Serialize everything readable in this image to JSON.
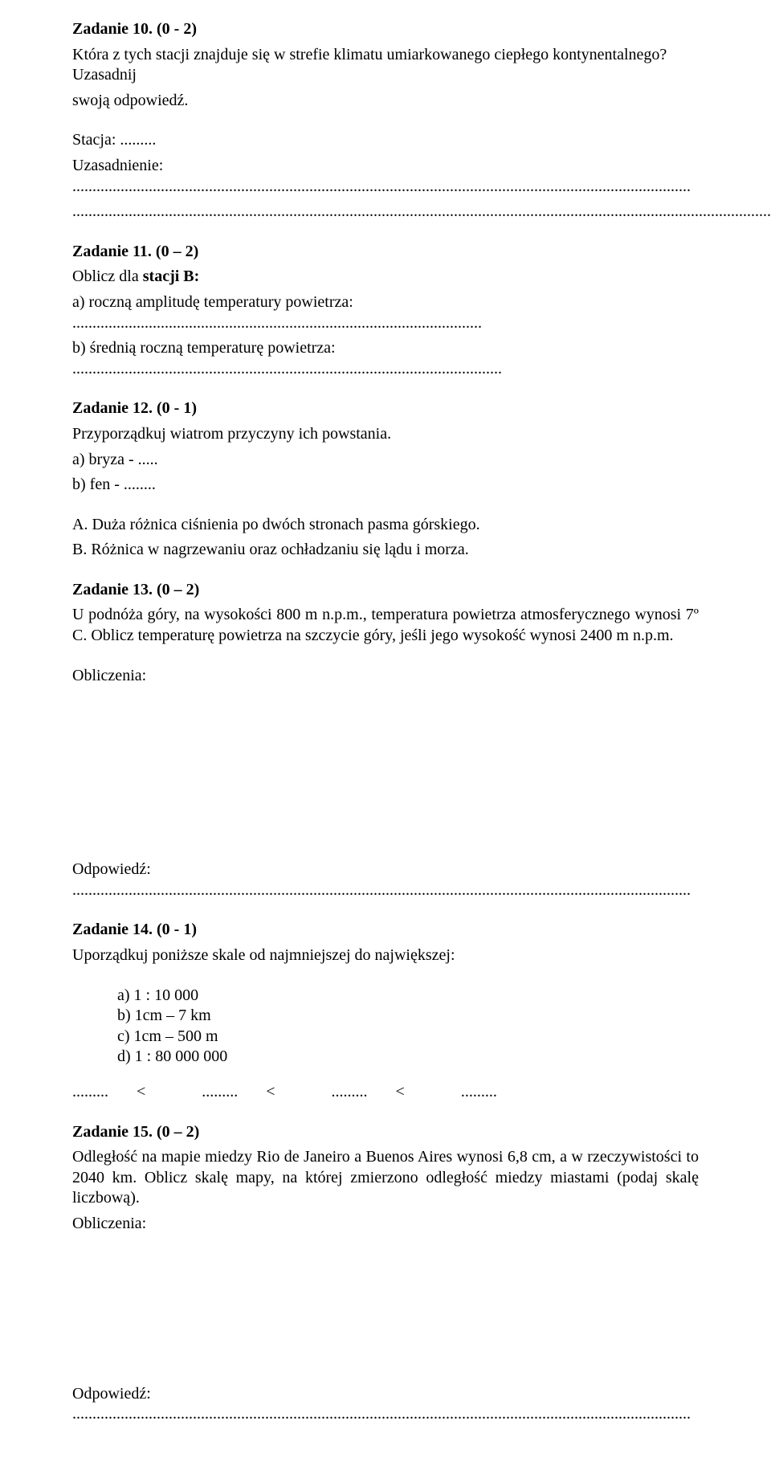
{
  "z10": {
    "heading": "Zadanie 10. (0 - 2)",
    "q_l1": "Która z tych stacji znajduje się w strefie klimatu umiarkowanego ciepłego kontynentalnego? Uzasadnij",
    "q_l2": "swoją odpowiedź.",
    "stacja": "Stacja: .........",
    "uzas": "Uzasadnienie: ..........................................................................................................................................................",
    "dots": "................................................................................................................................................................................"
  },
  "z11": {
    "heading": "Zadanie 11. (0 – 2)",
    "intro_a": "Oblicz dla ",
    "intro_b": "stacji B:",
    "a": "a) roczną amplitudę temperatury powietrza: ......................................................................................................",
    "b": "b) średnią roczną temperaturę powietrza: ..........................................................................................................."
  },
  "z12": {
    "heading": "Zadanie 12. (0 - 1)",
    "q": "Przyporządkuj wiatrom przyczyny ich powstania.",
    "a": "a) bryza - .....",
    "b": "b) fen - ........",
    "optA": "A. Duża różnica ciśnienia po dwóch stronach pasma górskiego.",
    "optB": "B. Różnica w nagrzewaniu oraz ochładzaniu się lądu i morza."
  },
  "z13": {
    "heading": "Zadanie 13. (0 – 2)",
    "p": "U podnóża góry, na wysokości 800 m n.p.m., temperatura powietrza atmosferycznego wynosi 7º C. Oblicz temperaturę powietrza na szczycie góry, jeśli jego wysokość wynosi 2400 m n.p.m.",
    "calc": "Obliczenia:",
    "ans": "Odpowiedź: .........................................................................................................................................................."
  },
  "z14": {
    "heading": "Zadanie  14. (0 - 1)",
    "q": "Uporządkuj poniższe skale od najmniejszej do największej:",
    "a": "a)   1 : 10 000",
    "b": "b)   1cm – 7 km",
    "c": "c)   1cm – 500 m",
    "d": "d)   1 : 80 000 000",
    "row": ".........       <              .........       <              .........       <              ........."
  },
  "z15": {
    "heading": "Zadanie 15. (0 – 2)",
    "p": "Odległość na mapie miedzy Rio de Janeiro a Buenos Aires wynosi 6,8 cm, a w rzeczywistości to 2040 km. Oblicz skalę mapy, na której zmierzono odległość miedzy miastami (podaj skalę liczbową).",
    "calc": "Obliczenia:",
    "ans": "Odpowiedź: .........................................................................................................................................................."
  }
}
